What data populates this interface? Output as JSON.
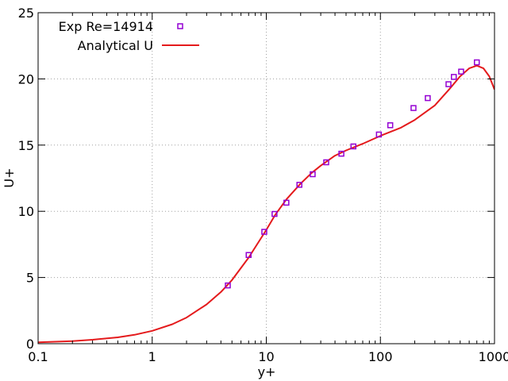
{
  "chart_data": {
    "type": "scatter",
    "xlabel": "y+",
    "ylabel": "U+",
    "x_scale": "log",
    "xlim": [
      0.1,
      1000
    ],
    "ylim": [
      0,
      25
    ],
    "x_ticks": [
      0.1,
      1,
      10,
      100,
      1000
    ],
    "x_tick_labels": [
      "0.1",
      "1",
      "10",
      "100",
      "1000"
    ],
    "y_ticks": [
      0,
      5,
      10,
      15,
      20,
      25
    ],
    "y_tick_labels": [
      "0",
      "5",
      "10",
      "15",
      "20",
      "25"
    ],
    "grid": true,
    "legend_position": "top-left",
    "series": [
      {
        "name": "Exp Re=14914",
        "kind": "markers",
        "marker": "open-square",
        "color": "#9400d3",
        "x": [
          4.6,
          7.0,
          9.6,
          11.8,
          15.0,
          19.5,
          25.5,
          33.5,
          45.5,
          58.0,
          97.0,
          122.0,
          195.0,
          260.0,
          395.0,
          440.0,
          510.0,
          700.0
        ],
        "y": [
          4.4,
          6.7,
          8.45,
          9.8,
          10.65,
          12.0,
          12.8,
          13.7,
          14.35,
          14.9,
          15.8,
          16.5,
          17.8,
          18.55,
          19.6,
          20.15,
          20.55,
          21.25
        ]
      },
      {
        "name": "Analytical   U",
        "kind": "line",
        "color": "#e41a1c",
        "x": [
          0.1,
          0.2,
          0.3,
          0.5,
          0.7,
          1.0,
          1.5,
          2.0,
          3.0,
          4.0,
          5.0,
          7.0,
          10.0,
          12.0,
          15.0,
          20.0,
          25.0,
          30.0,
          40.0,
          50.0,
          70.0,
          100.0,
          150.0,
          200.0,
          300.0,
          400.0,
          500.0,
          600.0,
          700.0,
          800.0,
          900.0,
          1000.0
        ],
        "y": [
          0.1,
          0.2,
          0.3,
          0.48,
          0.67,
          0.97,
          1.47,
          1.97,
          2.97,
          3.9,
          4.8,
          6.5,
          8.6,
          9.75,
          10.9,
          12.1,
          12.9,
          13.45,
          14.2,
          14.6,
          15.1,
          15.7,
          16.3,
          16.9,
          18.0,
          19.2,
          20.2,
          20.8,
          21.0,
          20.8,
          20.2,
          19.2
        ]
      }
    ]
  }
}
